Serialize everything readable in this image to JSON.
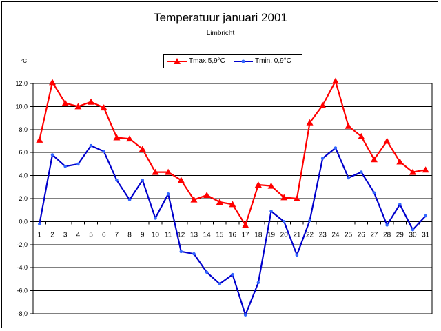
{
  "chart_data": {
    "type": "line",
    "title": "Temperatuur januari 2001",
    "subtitle": "Limbricht",
    "ylabel": "°C",
    "xlabel": "",
    "ylim": [
      -8,
      12
    ],
    "grid": true,
    "legend_position": "top-center",
    "x": [
      1,
      2,
      3,
      4,
      5,
      6,
      7,
      8,
      9,
      10,
      11,
      12,
      13,
      14,
      15,
      16,
      17,
      18,
      19,
      20,
      21,
      22,
      23,
      24,
      25,
      26,
      27,
      28,
      29,
      30,
      31
    ],
    "y_ticks": [
      "12,0",
      "10,0",
      "8,0",
      "6,0",
      "4,0",
      "2,0",
      "0,0",
      "-2,0",
      "-4,0",
      "-6,0",
      "-8,0"
    ],
    "series": [
      {
        "name": "Tmax.5,9°C",
        "color": "#ff0000",
        "marker": "triangle",
        "values": [
          7.1,
          12.1,
          10.3,
          10.0,
          10.4,
          9.9,
          7.3,
          7.2,
          6.3,
          4.3,
          4.3,
          3.6,
          1.9,
          2.3,
          1.7,
          1.5,
          -0.3,
          3.2,
          3.1,
          2.1,
          2.0,
          8.6,
          10.1,
          12.2,
          8.3,
          7.4,
          5.4,
          7.0,
          5.2,
          4.3,
          4.5
        ]
      },
      {
        "name": "Tmin. 0,9°C",
        "color": "#0000cc",
        "marker": "circle",
        "values": [
          -0.2,
          5.8,
          4.8,
          5.0,
          6.6,
          6.1,
          3.6,
          1.9,
          3.6,
          0.3,
          2.4,
          -2.6,
          -2.8,
          -4.4,
          -5.4,
          -4.6,
          -8.1,
          -5.3,
          0.9,
          0.0,
          -2.9,
          0.1,
          5.5,
          6.4,
          3.8,
          4.3,
          2.5,
          -0.3,
          1.5,
          -0.7,
          0.5
        ]
      }
    ]
  }
}
